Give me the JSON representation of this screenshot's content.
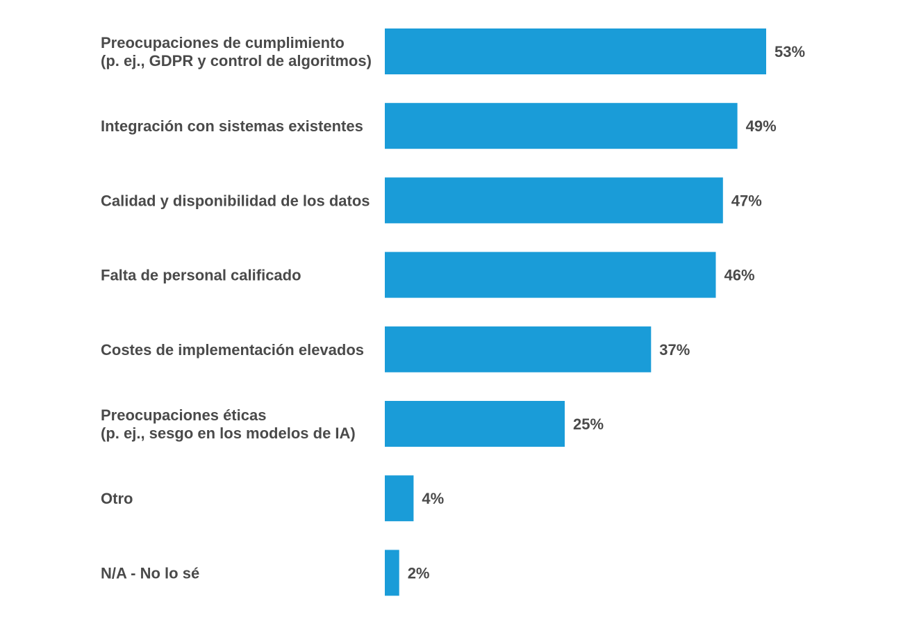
{
  "chart_data": {
    "type": "bar",
    "orientation": "horizontal",
    "title": "",
    "xlabel": "",
    "ylabel": "",
    "xlim": [
      0,
      53
    ],
    "grid": false,
    "bar_color": "#1a9cd8",
    "text_color": "#4a4a4a",
    "categories": [
      [
        "Preocupaciones de cumplimiento",
        "(p. ej., GDPR y control de algoritmos)"
      ],
      [
        "Integración con sistemas existentes"
      ],
      [
        "Calidad y disponibilidad de los datos"
      ],
      [
        "Falta de personal calificado"
      ],
      [
        "Costes de implementación elevados"
      ],
      [
        "Preocupaciones éticas",
        "(p. ej., sesgo en los modelos de IA)"
      ],
      [
        "Otro"
      ],
      [
        "N/A - No lo sé"
      ]
    ],
    "values": [
      53,
      49,
      47,
      46,
      37,
      25,
      4,
      2
    ],
    "value_labels": [
      "53%",
      "49%",
      "47%",
      "46%",
      "37%",
      "25%",
      "4%",
      "2%"
    ]
  }
}
